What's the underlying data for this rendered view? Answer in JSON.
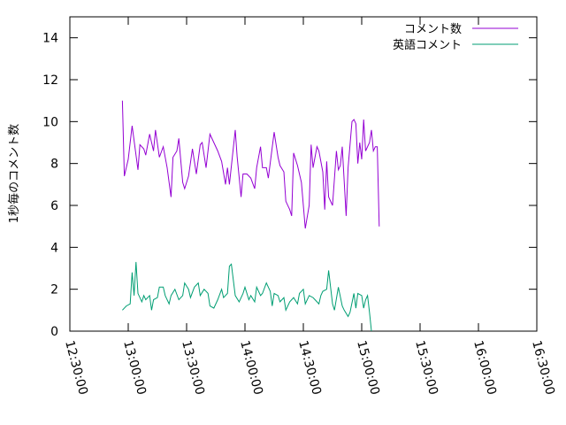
{
  "chart_data": {
    "type": "line",
    "ylabel": "1秒毎のコメント数",
    "ylim": [
      0,
      15
    ],
    "yticks": [
      0,
      2,
      4,
      6,
      8,
      10,
      12,
      14
    ],
    "xlim": [
      "12:30:00",
      "16:30:00"
    ],
    "xticks": [
      "12:30:00",
      "13:00:00",
      "13:30:00",
      "14:00:00",
      "14:30:00",
      "15:00:00",
      "15:30:00",
      "16:00:00",
      "16:30:00"
    ],
    "legend_position": "top-right",
    "grid": false,
    "series": [
      {
        "name": "コメント数",
        "color": "#9400d3",
        "points": [
          [
            "12:57:00",
            11.0
          ],
          [
            "12:58:00",
            7.4
          ],
          [
            "13:00:00",
            8.2
          ],
          [
            "13:02:00",
            9.8
          ],
          [
            "13:05:00",
            7.7
          ],
          [
            "13:06:00",
            8.9
          ],
          [
            "13:08:00",
            8.7
          ],
          [
            "13:09:00",
            8.4
          ],
          [
            "13:11:00",
            9.4
          ],
          [
            "13:13:00",
            8.6
          ],
          [
            "13:14:00",
            9.6
          ],
          [
            "13:16:00",
            8.3
          ],
          [
            "13:18:00",
            8.8
          ],
          [
            "13:20:00",
            7.8
          ],
          [
            "13:22:00",
            6.4
          ],
          [
            "13:23:00",
            8.3
          ],
          [
            "13:25:00",
            8.6
          ],
          [
            "13:26:00",
            9.2
          ],
          [
            "13:28:00",
            7.1
          ],
          [
            "13:29:00",
            6.8
          ],
          [
            "13:31:00",
            7.4
          ],
          [
            "13:33:00",
            8.7
          ],
          [
            "13:35:00",
            7.5
          ],
          [
            "13:37:00",
            8.9
          ],
          [
            "13:38:00",
            9.0
          ],
          [
            "13:40:00",
            7.8
          ],
          [
            "13:42:00",
            9.4
          ],
          [
            "13:44:00",
            9.0
          ],
          [
            "13:46:00",
            8.6
          ],
          [
            "13:48:00",
            8.1
          ],
          [
            "13:50:00",
            7.0
          ],
          [
            "13:51:00",
            7.8
          ],
          [
            "13:52:00",
            7.0
          ],
          [
            "13:55:00",
            9.6
          ],
          [
            "13:56:00",
            8.3
          ],
          [
            "13:58:00",
            6.4
          ],
          [
            "13:59:00",
            7.5
          ],
          [
            "14:01:00",
            7.5
          ],
          [
            "14:03:00",
            7.3
          ],
          [
            "14:05:00",
            6.8
          ],
          [
            "14:06:00",
            7.8
          ],
          [
            "14:08:00",
            8.8
          ],
          [
            "14:09:00",
            7.8
          ],
          [
            "14:11:00",
            7.8
          ],
          [
            "14:12:00",
            7.3
          ],
          [
            "14:15:00",
            9.5
          ],
          [
            "14:17:00",
            8.3
          ],
          [
            "14:18:00",
            7.9
          ],
          [
            "14:20:00",
            7.6
          ],
          [
            "14:21:00",
            6.2
          ],
          [
            "14:23:00",
            5.8
          ],
          [
            "14:24:00",
            5.5
          ],
          [
            "14:25:00",
            8.5
          ],
          [
            "14:27:00",
            7.9
          ],
          [
            "14:29:00",
            7.1
          ],
          [
            "14:31:00",
            4.9
          ],
          [
            "14:33:00",
            6.0
          ],
          [
            "14:34:00",
            8.9
          ],
          [
            "14:35:00",
            7.8
          ],
          [
            "14:37:00",
            8.8
          ],
          [
            "14:38:00",
            8.6
          ],
          [
            "14:40:00",
            7.6
          ],
          [
            "14:41:00",
            5.8
          ],
          [
            "14:42:00",
            8.1
          ],
          [
            "14:43:00",
            6.4
          ],
          [
            "14:45:00",
            6.0
          ],
          [
            "14:47:00",
            8.6
          ],
          [
            "14:48:00",
            7.7
          ],
          [
            "14:49:00",
            7.9
          ],
          [
            "14:50:00",
            8.8
          ],
          [
            "14:52:00",
            5.5
          ],
          [
            "14:53:00",
            7.8
          ],
          [
            "14:55:00",
            10.0
          ],
          [
            "14:56:00",
            10.1
          ],
          [
            "14:57:00",
            9.9
          ],
          [
            "14:58:00",
            8.0
          ],
          [
            "14:59:00",
            9.0
          ],
          [
            "15:00:00",
            8.2
          ],
          [
            "15:01:00",
            10.1
          ],
          [
            "15:02:00",
            8.6
          ],
          [
            "15:04:00",
            9.0
          ],
          [
            "15:05:00",
            9.6
          ],
          [
            "15:06:00",
            8.6
          ],
          [
            "15:07:00",
            8.8
          ],
          [
            "15:08:00",
            8.8
          ],
          [
            "15:09:00",
            5.0
          ]
        ]
      },
      {
        "name": "英語コメント",
        "color": "#009e73",
        "points": [
          [
            "12:57:00",
            1.0
          ],
          [
            "12:59:00",
            1.2
          ],
          [
            "13:01:00",
            1.3
          ],
          [
            "13:02:00",
            2.8
          ],
          [
            "13:03:00",
            1.7
          ],
          [
            "13:04:00",
            3.3
          ],
          [
            "13:05:00",
            1.8
          ],
          [
            "13:07:00",
            1.4
          ],
          [
            "13:08:00",
            1.7
          ],
          [
            "13:09:00",
            1.5
          ],
          [
            "13:11:00",
            1.7
          ],
          [
            "13:12:00",
            1.0
          ],
          [
            "13:13:00",
            1.5
          ],
          [
            "13:15:00",
            1.6
          ],
          [
            "13:16:00",
            2.1
          ],
          [
            "13:18:00",
            2.1
          ],
          [
            "13:19:00",
            1.7
          ],
          [
            "13:21:00",
            1.3
          ],
          [
            "13:22:00",
            1.7
          ],
          [
            "13:24:00",
            2.0
          ],
          [
            "13:26:00",
            1.5
          ],
          [
            "13:28:00",
            1.7
          ],
          [
            "13:29:00",
            2.3
          ],
          [
            "13:31:00",
            2.0
          ],
          [
            "13:32:00",
            1.6
          ],
          [
            "13:34:00",
            2.1
          ],
          [
            "13:36:00",
            2.3
          ],
          [
            "13:37:00",
            1.7
          ],
          [
            "13:39:00",
            2.0
          ],
          [
            "13:41:00",
            1.8
          ],
          [
            "13:42:00",
            1.2
          ],
          [
            "13:44:00",
            1.1
          ],
          [
            "13:46:00",
            1.5
          ],
          [
            "13:48:00",
            2.0
          ],
          [
            "13:49:00",
            1.6
          ],
          [
            "13:51:00",
            1.8
          ],
          [
            "13:52:00",
            3.1
          ],
          [
            "13:53:00",
            3.2
          ],
          [
            "13:55:00",
            1.7
          ],
          [
            "13:57:00",
            1.4
          ],
          [
            "13:59:00",
            1.8
          ],
          [
            "14:00:00",
            2.1
          ],
          [
            "14:02:00",
            1.5
          ],
          [
            "14:03:00",
            1.7
          ],
          [
            "14:05:00",
            1.4
          ],
          [
            "14:06:00",
            2.1
          ],
          [
            "14:08:00",
            1.7
          ],
          [
            "14:09:00",
            1.8
          ],
          [
            "14:11:00",
            2.3
          ],
          [
            "14:13:00",
            1.9
          ],
          [
            "14:14:00",
            1.2
          ],
          [
            "14:15:00",
            1.8
          ],
          [
            "14:17:00",
            1.7
          ],
          [
            "14:18:00",
            1.4
          ],
          [
            "14:20:00",
            1.6
          ],
          [
            "14:21:00",
            1.0
          ],
          [
            "14:23:00",
            1.4
          ],
          [
            "14:25:00",
            1.6
          ],
          [
            "14:27:00",
            1.3
          ],
          [
            "14:28:00",
            1.8
          ],
          [
            "14:30:00",
            2.0
          ],
          [
            "14:31:00",
            1.3
          ],
          [
            "14:33:00",
            1.7
          ],
          [
            "14:35:00",
            1.6
          ],
          [
            "14:36:00",
            1.5
          ],
          [
            "14:38:00",
            1.3
          ],
          [
            "14:39:00",
            1.7
          ],
          [
            "14:40:00",
            1.9
          ],
          [
            "14:42:00",
            2.0
          ],
          [
            "14:43:00",
            2.9
          ],
          [
            "14:45:00",
            1.3
          ],
          [
            "14:46:00",
            1.0
          ],
          [
            "14:48:00",
            2.1
          ],
          [
            "14:50:00",
            1.2
          ],
          [
            "14:51:00",
            1.0
          ],
          [
            "14:53:00",
            0.7
          ],
          [
            "14:54:00",
            0.9
          ],
          [
            "14:56:00",
            1.8
          ],
          [
            "14:57:00",
            1.1
          ],
          [
            "14:58:00",
            1.8
          ],
          [
            "15:00:00",
            1.7
          ],
          [
            "15:01:00",
            1.1
          ],
          [
            "15:02:00",
            1.5
          ],
          [
            "15:03:00",
            1.7
          ],
          [
            "15:04:00",
            0.9
          ],
          [
            "15:05:00",
            0.0
          ]
        ]
      }
    ]
  }
}
